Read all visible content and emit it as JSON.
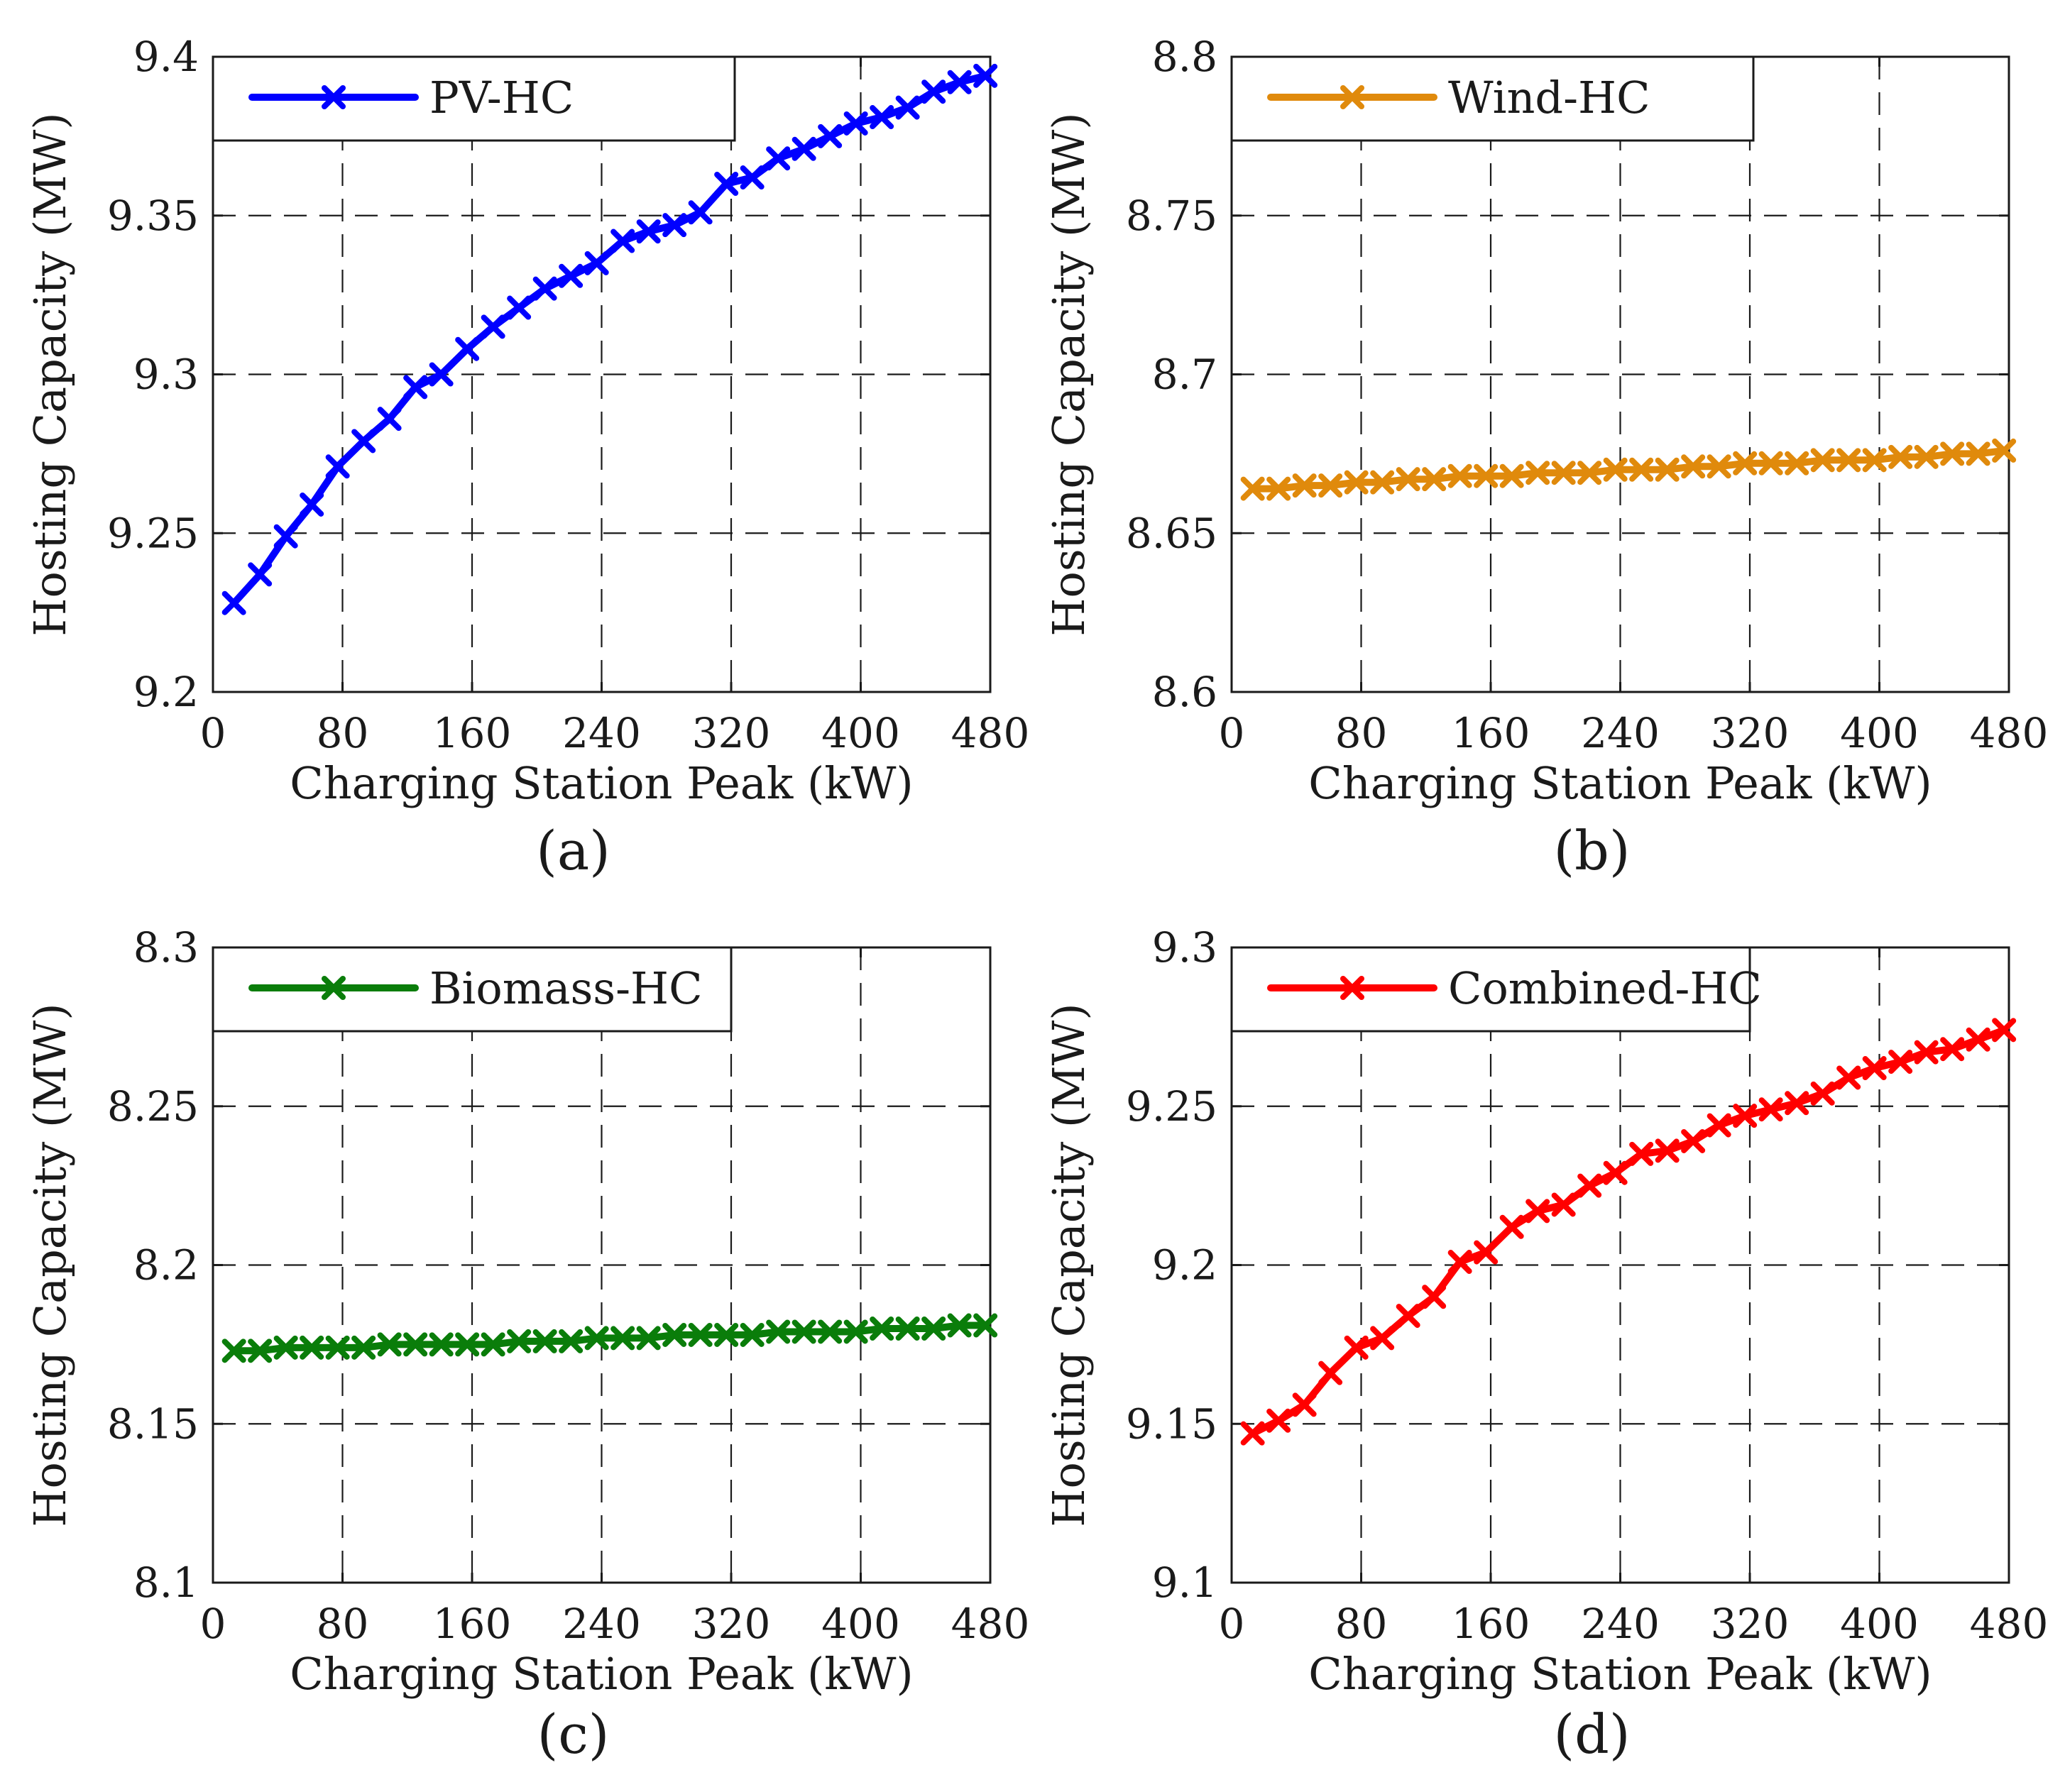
{
  "figure": {
    "x_tick_labels": [
      "0",
      "80",
      "160",
      "240",
      "320",
      "400",
      "480"
    ]
  },
  "chart_data": [
    {
      "type": "line",
      "caption": "(a)",
      "xlabel": "Charging Station Peak (kW)",
      "ylabel": "Hosting Capacity (MW)",
      "xlim": [
        0,
        480
      ],
      "ylim": [
        9.2,
        9.4
      ],
      "y_tick_labels": [
        "9.2",
        "9.25",
        "9.3",
        "9.35",
        "9.4"
      ],
      "grid": true,
      "legend_position": "top-left",
      "series": [
        {
          "name": "PV-HC",
          "color": "#0000ff",
          "marker": "x",
          "x": [
            13,
            29,
            45,
            61,
            77,
            93,
            109,
            125,
            141,
            157,
            173,
            189,
            205,
            221,
            237,
            253,
            269,
            285,
            301,
            317,
            333,
            349,
            365,
            381,
            397,
            413,
            429,
            445,
            461,
            477
          ],
          "values": [
            9.228,
            9.237,
            9.249,
            9.259,
            9.271,
            9.279,
            9.286,
            9.296,
            9.3,
            9.308,
            9.315,
            9.321,
            9.327,
            9.331,
            9.335,
            9.342,
            9.345,
            9.347,
            9.351,
            9.36,
            9.362,
            9.368,
            9.371,
            9.375,
            9.379,
            9.381,
            9.384,
            9.389,
            9.392,
            9.394
          ]
        }
      ]
    },
    {
      "type": "line",
      "caption": "(b)",
      "xlabel": "Charging Station Peak (kW)",
      "ylabel": "Hosting Capacity (MW)",
      "xlim": [
        0,
        480
      ],
      "ylim": [
        8.6,
        8.8
      ],
      "y_tick_labels": [
        "8.6",
        "8.65",
        "8.7",
        "8.75",
        "8.8"
      ],
      "grid": true,
      "legend_position": "top-left",
      "series": [
        {
          "name": "Wind-HC",
          "color": "#e08a0c",
          "marker": "x",
          "x": [
            13,
            29,
            45,
            61,
            77,
            93,
            109,
            125,
            141,
            157,
            173,
            189,
            205,
            221,
            237,
            253,
            269,
            285,
            301,
            317,
            333,
            349,
            365,
            381,
            397,
            413,
            429,
            445,
            461,
            477
          ],
          "values": [
            8.664,
            8.664,
            8.665,
            8.665,
            8.666,
            8.666,
            8.667,
            8.667,
            8.668,
            8.668,
            8.668,
            8.669,
            8.669,
            8.669,
            8.67,
            8.67,
            8.67,
            8.671,
            8.671,
            8.672,
            8.672,
            8.672,
            8.673,
            8.673,
            8.673,
            8.674,
            8.674,
            8.675,
            8.675,
            8.676
          ]
        }
      ]
    },
    {
      "type": "line",
      "caption": "(c)",
      "xlabel": "Charging Station Peak (kW)",
      "ylabel": "Hosting Capacity (MW)",
      "xlim": [
        0,
        480
      ],
      "ylim": [
        8.1,
        8.3
      ],
      "y_tick_labels": [
        "8.1",
        "8.15",
        "8.2",
        "8.25",
        "8.3"
      ],
      "grid": true,
      "legend_position": "top-left",
      "series": [
        {
          "name": "Biomass-HC",
          "color": "#0a7d0a",
          "marker": "x",
          "x": [
            13,
            29,
            45,
            61,
            77,
            93,
            109,
            125,
            141,
            157,
            173,
            189,
            205,
            221,
            237,
            253,
            269,
            285,
            301,
            317,
            333,
            349,
            365,
            381,
            397,
            413,
            429,
            445,
            461,
            477
          ],
          "values": [
            8.173,
            8.173,
            8.174,
            8.174,
            8.174,
            8.174,
            8.175,
            8.175,
            8.175,
            8.175,
            8.175,
            8.176,
            8.176,
            8.176,
            8.177,
            8.177,
            8.177,
            8.178,
            8.178,
            8.178,
            8.178,
            8.179,
            8.179,
            8.179,
            8.179,
            8.18,
            8.18,
            8.18,
            8.181,
            8.181
          ]
        }
      ]
    },
    {
      "type": "line",
      "caption": "(d)",
      "xlabel": "Charging Station Peak (kW)",
      "ylabel": "Hosting Capacity (MW)",
      "xlim": [
        0,
        480
      ],
      "ylim": [
        9.1,
        9.3
      ],
      "y_tick_labels": [
        "9.1",
        "9.15",
        "9.2",
        "9.25",
        "9.3"
      ],
      "grid": true,
      "legend_position": "top-left",
      "series": [
        {
          "name": "Combined-HC",
          "color": "#ff0000",
          "marker": "x",
          "x": [
            13,
            29,
            45,
            61,
            77,
            93,
            109,
            125,
            141,
            157,
            173,
            189,
            205,
            221,
            237,
            253,
            269,
            285,
            301,
            317,
            333,
            349,
            365,
            381,
            397,
            413,
            429,
            445,
            461,
            477
          ],
          "values": [
            9.147,
            9.151,
            9.156,
            9.166,
            9.174,
            9.177,
            9.184,
            9.19,
            9.201,
            9.204,
            9.212,
            9.217,
            9.219,
            9.225,
            9.229,
            9.235,
            9.236,
            9.239,
            9.244,
            9.247,
            9.249,
            9.251,
            9.254,
            9.259,
            9.262,
            9.264,
            9.267,
            9.268,
            9.271,
            9.274
          ]
        }
      ]
    }
  ]
}
